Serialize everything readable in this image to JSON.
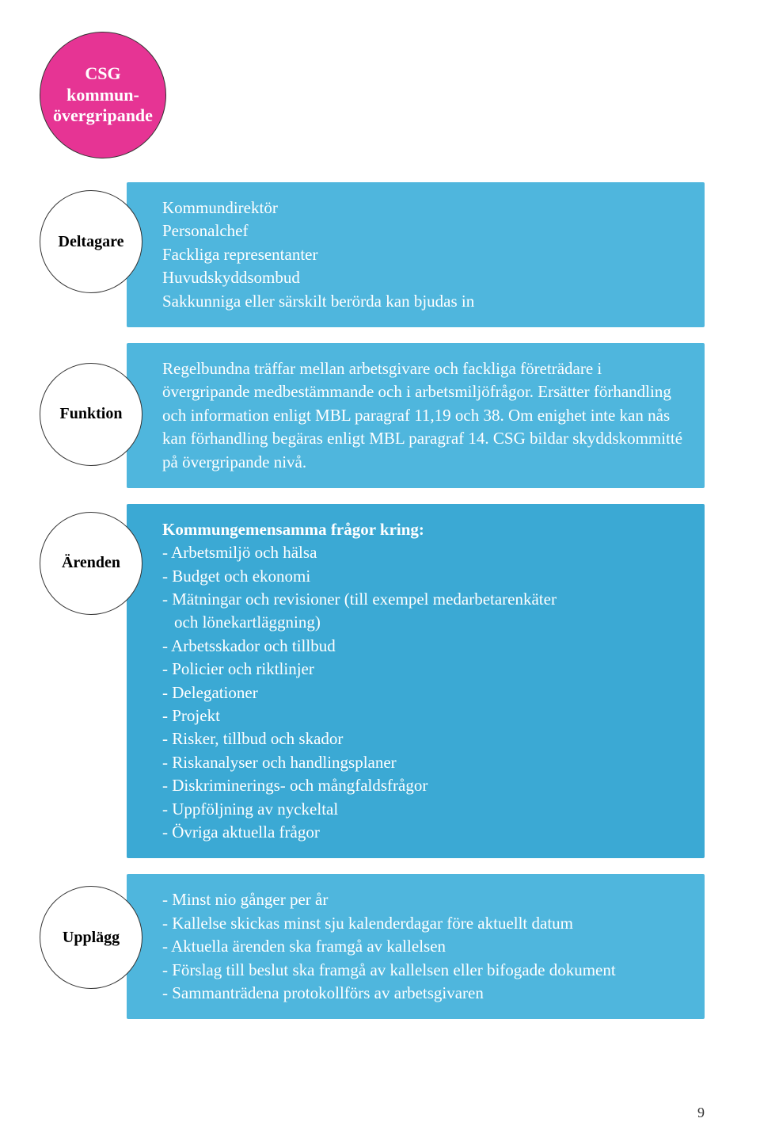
{
  "colors": {
    "header_bg": "#e63494",
    "box_bg": "#4fb6dd",
    "tall_box_bg": "#3ba9d4",
    "circle_border": "#333333"
  },
  "header": {
    "line1": "CSG",
    "line2": "kommun-",
    "line3": "övergripande"
  },
  "sections": [
    {
      "label": "Deltagare",
      "lines": [
        "Kommundirektör",
        "Personalchef",
        "Fackliga representanter",
        "Huvudskyddsombud",
        "Sakkunniga eller särskilt berörda kan bjudas in"
      ]
    },
    {
      "label": "Funktion",
      "paragraph": "Regelbundna träffar mellan arbetsgivare och fackliga företrädare i övergripande medbestämmande och i arbetsmiljöfrågor. Ersätter förhandling och information enligt MBL paragraf 11,19 och 38. Om enighet inte kan nås kan förhandling begäras enligt MBL paragraf 14. CSG bildar skyddskommitté på övergripande nivå."
    },
    {
      "label": "Ärenden",
      "heading": "Kommungemensamma frågor kring:",
      "bullets": [
        "Arbetsmiljö och hälsa",
        "Budget och ekonomi",
        "Mätningar och revisioner (till exempel medarbetarenkäter"
      ],
      "indent": "och lönekartläggning)",
      "bullets2": [
        "Arbetsskador och tillbud",
        "Policier och riktlinjer",
        "Delegationer",
        "Projekt",
        "Risker, tillbud och skador",
        "Riskanalyser och handlingsplaner",
        "Diskriminerings- och mångfaldsfrågor",
        "Uppföljning av nyckeltal",
        "Övriga aktuella frågor"
      ]
    },
    {
      "label": "Upplägg",
      "bullets": [
        "Minst nio gånger per år",
        "Kallelse skickas minst sju kalenderdagar före aktuellt datum",
        "Aktuella ärenden ska framgå av kallelsen",
        "Förslag till beslut ska framgå av kallelsen eller bifogade dokument",
        "Sammanträdena protokollförs av arbetsgivaren"
      ]
    }
  ],
  "page_number": "9"
}
